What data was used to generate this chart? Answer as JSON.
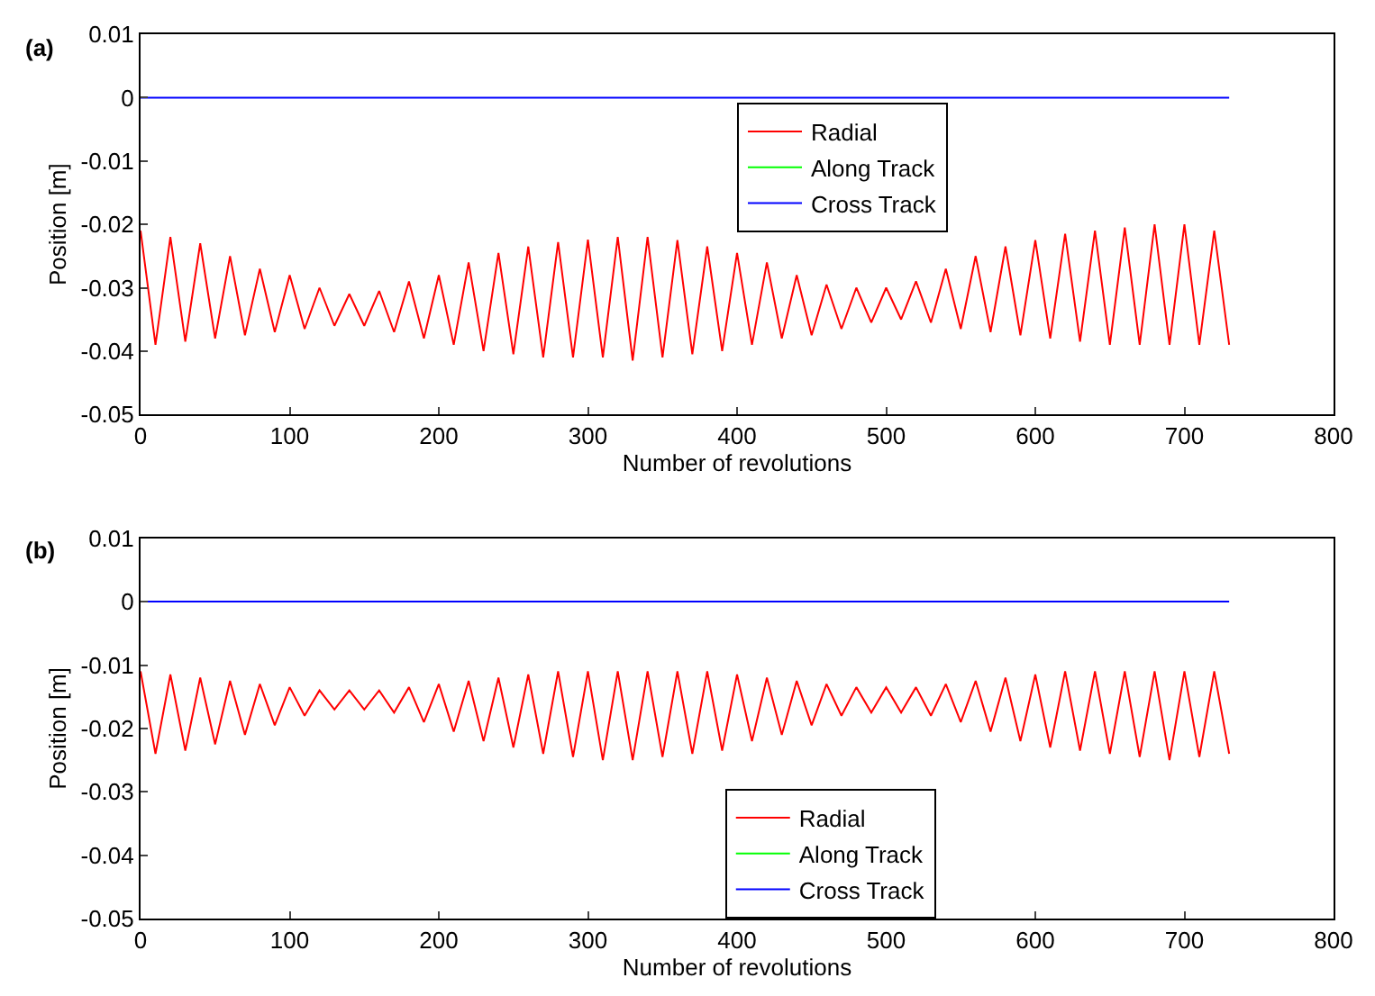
{
  "chart_data": [
    {
      "type": "line",
      "title": "(a)",
      "xlabel": "Number of revolutions",
      "ylabel": "Position [m]",
      "xlim": [
        0,
        800
      ],
      "xticks": [
        0,
        100,
        200,
        300,
        400,
        500,
        600,
        700,
        800
      ],
      "ylim": [
        -0.05,
        0.01
      ],
      "yticks": [
        -0.05,
        -0.04,
        -0.03,
        -0.02,
        -0.01,
        0,
        0.01
      ],
      "legend": "top",
      "marker": "none",
      "line_style": "solid",
      "series": [
        {
          "name": "Radial",
          "color": "#ff0000",
          "x": [
            0,
            10,
            20,
            30,
            40,
            50,
            60,
            70,
            80,
            90,
            100,
            110,
            120,
            130,
            140,
            150,
            160,
            170,
            180,
            190,
            200,
            210,
            220,
            230,
            240,
            250,
            260,
            270,
            280,
            290,
            300,
            310,
            320,
            330,
            340,
            350,
            360,
            370,
            380,
            390,
            400,
            410,
            420,
            430,
            440,
            450,
            460,
            470,
            480,
            490,
            500,
            510,
            520,
            530,
            540,
            550,
            560,
            570,
            580,
            590,
            600,
            610,
            620,
            630,
            640,
            650,
            660,
            670,
            680,
            690,
            700,
            710,
            720,
            730
          ],
          "values": [
            -0.021,
            -0.039,
            -0.022,
            -0.0385,
            -0.023,
            -0.038,
            -0.025,
            -0.0375,
            -0.027,
            -0.037,
            -0.028,
            -0.0365,
            -0.03,
            -0.036,
            -0.031,
            -0.036,
            -0.0305,
            -0.037,
            -0.029,
            -0.038,
            -0.028,
            -0.039,
            -0.026,
            -0.04,
            -0.0245,
            -0.0405,
            -0.0235,
            -0.041,
            -0.0228,
            -0.041,
            -0.0224,
            -0.041,
            -0.022,
            -0.0415,
            -0.022,
            -0.041,
            -0.0225,
            -0.0405,
            -0.0235,
            -0.04,
            -0.0245,
            -0.039,
            -0.026,
            -0.038,
            -0.028,
            -0.0375,
            -0.0295,
            -0.0365,
            -0.03,
            -0.0355,
            -0.03,
            -0.035,
            -0.029,
            -0.0355,
            -0.027,
            -0.0365,
            -0.025,
            -0.037,
            -0.0235,
            -0.0375,
            -0.0225,
            -0.038,
            -0.0215,
            -0.0385,
            -0.021,
            -0.039,
            -0.0205,
            -0.039,
            -0.02,
            -0.039,
            -0.02,
            -0.039,
            -0.021,
            -0.039
          ]
        },
        {
          "name": "Along Track",
          "color": "#00ff00"
        },
        {
          "name": "Cross Track",
          "color": "#0000ff",
          "x": [
            0,
            730
          ],
          "values": [
            0,
            0
          ]
        }
      ]
    },
    {
      "type": "line",
      "title": "(b)",
      "xlabel": "Number of revolutions",
      "ylabel": "Position [m]",
      "xlim": [
        0,
        800
      ],
      "xticks": [
        0,
        100,
        200,
        300,
        400,
        500,
        600,
        700,
        800
      ],
      "ylim": [
        -0.05,
        0.01
      ],
      "yticks": [
        -0.05,
        -0.04,
        -0.03,
        -0.02,
        -0.01,
        0,
        0.01
      ],
      "legend": "bottom",
      "marker": "none",
      "line_style": "solid",
      "series": [
        {
          "name": "Radial",
          "color": "#ff0000",
          "x": [
            0,
            10,
            20,
            30,
            40,
            50,
            60,
            70,
            80,
            90,
            100,
            110,
            120,
            130,
            140,
            150,
            160,
            170,
            180,
            190,
            200,
            210,
            220,
            230,
            240,
            250,
            260,
            270,
            280,
            290,
            300,
            310,
            320,
            330,
            340,
            350,
            360,
            370,
            380,
            390,
            400,
            410,
            420,
            430,
            440,
            450,
            460,
            470,
            480,
            490,
            500,
            510,
            520,
            530,
            540,
            550,
            560,
            570,
            580,
            590,
            600,
            610,
            620,
            630,
            640,
            650,
            660,
            670,
            680,
            690,
            700,
            710,
            720,
            730
          ],
          "values": [
            -0.011,
            -0.024,
            -0.0115,
            -0.0235,
            -0.012,
            -0.0225,
            -0.0125,
            -0.021,
            -0.013,
            -0.0195,
            -0.0135,
            -0.018,
            -0.014,
            -0.017,
            -0.014,
            -0.017,
            -0.014,
            -0.0175,
            -0.0135,
            -0.019,
            -0.013,
            -0.0205,
            -0.0125,
            -0.022,
            -0.012,
            -0.023,
            -0.0115,
            -0.024,
            -0.011,
            -0.0245,
            -0.011,
            -0.025,
            -0.011,
            -0.025,
            -0.011,
            -0.0245,
            -0.011,
            -0.024,
            -0.011,
            -0.0235,
            -0.0115,
            -0.022,
            -0.012,
            -0.021,
            -0.0125,
            -0.0195,
            -0.013,
            -0.018,
            -0.0135,
            -0.0175,
            -0.0135,
            -0.0175,
            -0.0135,
            -0.018,
            -0.013,
            -0.019,
            -0.0125,
            -0.0205,
            -0.012,
            -0.022,
            -0.0115,
            -0.023,
            -0.011,
            -0.0235,
            -0.011,
            -0.024,
            -0.011,
            -0.0245,
            -0.011,
            -0.025,
            -0.011,
            -0.0245,
            -0.011,
            -0.024
          ]
        },
        {
          "name": "Along Track",
          "color": "#00ff00"
        },
        {
          "name": "Cross Track",
          "color": "#0000ff",
          "x": [
            0,
            730
          ],
          "values": [
            0,
            0
          ]
        }
      ]
    }
  ]
}
